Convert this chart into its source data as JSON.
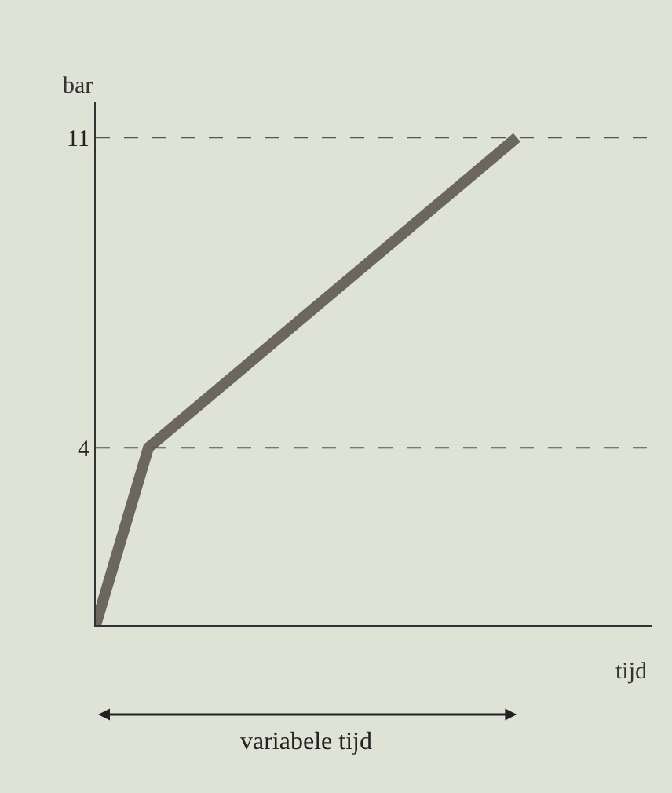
{
  "chart_data": {
    "type": "line",
    "ylabel": "bar",
    "xlabel": "tijd",
    "categories": [
      null,
      null,
      null,
      null,
      null,
      null,
      null,
      null,
      null
    ],
    "series": [
      {
        "color": "#6b6660",
        "values": [
          0,
          4,
          5,
          6,
          7,
          8,
          9,
          10,
          11
        ]
      }
    ],
    "ylim": [
      0,
      11.8
    ],
    "yticks": [
      4,
      11
    ],
    "tick_labels": "y",
    "grid": false,
    "marker": "none",
    "line_style": "solid",
    "ref_lines": [
      {
        "axis": "y",
        "value": 4,
        "line_style": "dashed"
      },
      {
        "axis": "y",
        "value": 11,
        "line_style": "dashed"
      }
    ],
    "annotations": [
      "variabele tijd"
    ]
  }
}
